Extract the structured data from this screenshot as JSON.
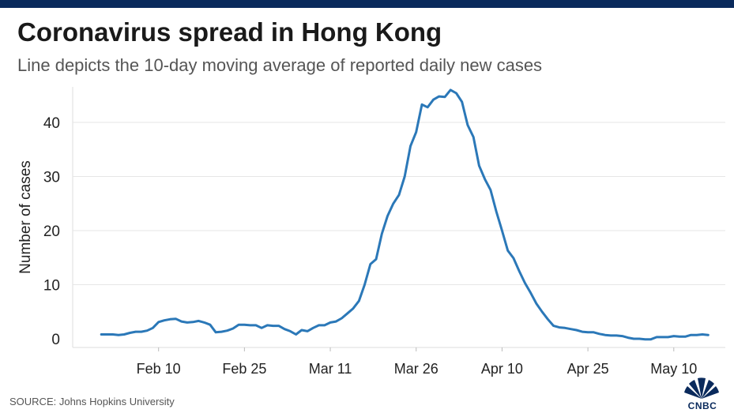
{
  "header": {
    "title": "Coronavirus spread in Hong Kong",
    "subtitle": "Line depicts the 10-day moving average of reported daily new cases"
  },
  "footer": {
    "source": "SOURCE: Johns Hopkins University",
    "logo_text": "CNBC"
  },
  "colors": {
    "line": "#2b78b8",
    "grid": "#e6e6e6",
    "top_bar": "#0a2a5c",
    "text": "#222222"
  },
  "chart_data": {
    "type": "line",
    "title": "Coronavirus spread in Hong Kong",
    "subtitle": "Line depicts the 10-day moving average of reported daily new cases",
    "xlabel": "",
    "ylabel": "Number of cases",
    "ylim": [
      0,
      47
    ],
    "xlim": [
      "2020-01-26",
      "2020-05-19"
    ],
    "yticks": [
      0,
      10,
      20,
      30,
      40
    ],
    "xticks": [
      {
        "date": "2020-02-10",
        "label": "Feb 10"
      },
      {
        "date": "2020-02-25",
        "label": "Feb 25"
      },
      {
        "date": "2020-03-11",
        "label": "Mar 11"
      },
      {
        "date": "2020-03-26",
        "label": "Mar 26"
      },
      {
        "date": "2020-04-10",
        "label": "Apr 10"
      },
      {
        "date": "2020-04-25",
        "label": "Apr 25"
      },
      {
        "date": "2020-05-10",
        "label": "May 10"
      }
    ],
    "grid": "horizontal",
    "series": [
      {
        "x": [
          "2020-01-31",
          "2020-02-01",
          "2020-02-02",
          "2020-02-03",
          "2020-02-04",
          "2020-02-05",
          "2020-02-06",
          "2020-02-07",
          "2020-02-08",
          "2020-02-09",
          "2020-02-10",
          "2020-02-11",
          "2020-02-12",
          "2020-02-13",
          "2020-02-14",
          "2020-02-15",
          "2020-02-16",
          "2020-02-17",
          "2020-02-18",
          "2020-02-19",
          "2020-02-20",
          "2020-02-21",
          "2020-02-22",
          "2020-02-23",
          "2020-02-24",
          "2020-02-25",
          "2020-02-26",
          "2020-02-27",
          "2020-02-28",
          "2020-02-29",
          "2020-03-01",
          "2020-03-02",
          "2020-03-03",
          "2020-03-04",
          "2020-03-05",
          "2020-03-06",
          "2020-03-07",
          "2020-03-08",
          "2020-03-09",
          "2020-03-10",
          "2020-03-11",
          "2020-03-12",
          "2020-03-13",
          "2020-03-14",
          "2020-03-15",
          "2020-03-16",
          "2020-03-17",
          "2020-03-18",
          "2020-03-19",
          "2020-03-20",
          "2020-03-21",
          "2020-03-22",
          "2020-03-23",
          "2020-03-24",
          "2020-03-25",
          "2020-03-26",
          "2020-03-27",
          "2020-03-28",
          "2020-03-29",
          "2020-03-30",
          "2020-03-31",
          "2020-04-01",
          "2020-04-02",
          "2020-04-03",
          "2020-04-04",
          "2020-04-05",
          "2020-04-06",
          "2020-04-07",
          "2020-04-08",
          "2020-04-09",
          "2020-04-10",
          "2020-04-11",
          "2020-04-12",
          "2020-04-13",
          "2020-04-14",
          "2020-04-15",
          "2020-04-16",
          "2020-04-17",
          "2020-04-18",
          "2020-04-19",
          "2020-04-20",
          "2020-04-21",
          "2020-04-22",
          "2020-04-23",
          "2020-04-24",
          "2020-04-25",
          "2020-04-26",
          "2020-04-27",
          "2020-04-28",
          "2020-04-29",
          "2020-04-30",
          "2020-05-01",
          "2020-05-02",
          "2020-05-03",
          "2020-05-04",
          "2020-05-05",
          "2020-05-06",
          "2020-05-07",
          "2020-05-08",
          "2020-05-09",
          "2020-05-10",
          "2020-05-11",
          "2020-05-12",
          "2020-05-13",
          "2020-05-14",
          "2020-05-15",
          "2020-05-16"
        ],
        "y": [
          0.8,
          0.8,
          0.8,
          0.7,
          0.8,
          1.1,
          1.3,
          1.3,
          1.5,
          2.0,
          3.1,
          3.4,
          3.6,
          3.7,
          3.2,
          3.0,
          3.1,
          3.3,
          3.0,
          2.6,
          1.2,
          1.3,
          1.5,
          1.9,
          2.6,
          2.6,
          2.5,
          2.5,
          2.0,
          2.5,
          2.4,
          2.4,
          1.8,
          1.4,
          0.8,
          1.6,
          1.4,
          2.0,
          2.5,
          2.5,
          3.0,
          3.2,
          3.8,
          4.7,
          5.6,
          7.0,
          10.0,
          13.8,
          14.7,
          19.4,
          22.7,
          25.0,
          26.6,
          30.0,
          35.6,
          38.2,
          43.3,
          42.8,
          44.2,
          44.8,
          44.7,
          46.0,
          45.4,
          43.8,
          39.5,
          37.3,
          32.0,
          29.5,
          27.5,
          23.5,
          20.0,
          16.3,
          14.9,
          12.5,
          10.3,
          8.5,
          6.5,
          5.0,
          3.6,
          2.4,
          2.1,
          2.0,
          1.8,
          1.6,
          1.3,
          1.2,
          1.2,
          0.9,
          0.7,
          0.6,
          0.6,
          0.5,
          0.2,
          0.0,
          0.0,
          -0.1,
          -0.1,
          0.3,
          0.3,
          0.3,
          0.5,
          0.4,
          0.4,
          0.7,
          0.7,
          0.8,
          0.7
        ]
      }
    ]
  }
}
